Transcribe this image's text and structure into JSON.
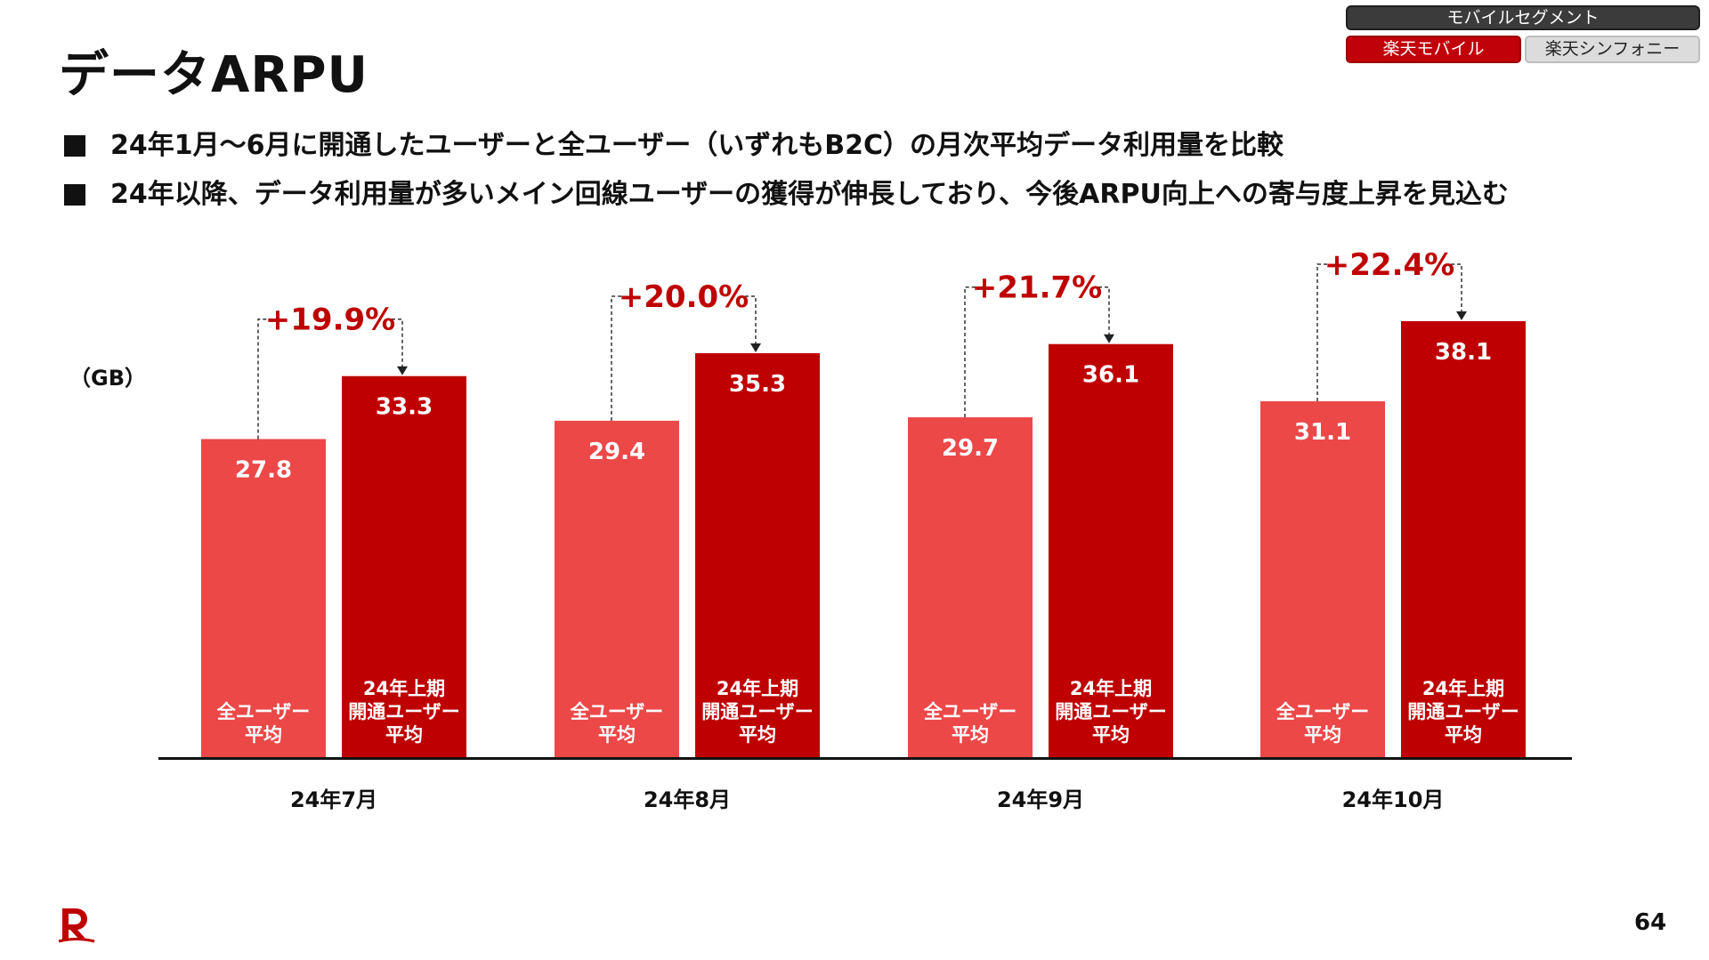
{
  "segment": {
    "header": "モバイルセグメント",
    "tabs": [
      {
        "label": "楽天モバイル",
        "active": true
      },
      {
        "label": "楽天シンフォニー",
        "active": false
      }
    ]
  },
  "title": "データARPU",
  "bullets": [
    "24年1月～6月に開通したユーザーと全ユーザー（いずれもB2C）の月次平均データ利用量を比較",
    "24年以降、データ利用量が多いメイン回線ユーザーの獲得が伸長しており、今後ARPU向上への寄与度上昇を見込む"
  ],
  "page_number": "64",
  "colors": {
    "brand_red": "#bf0000",
    "light_red": "#ec4848",
    "dark_red": "#bf0000",
    "accent_text_red": "#bf0000"
  },
  "chart_data": {
    "type": "bar",
    "ylabel": "（GB）",
    "categories": [
      "24年7月",
      "24年8月",
      "24年9月",
      "24年10月"
    ],
    "series": [
      {
        "name": "全ユーザー平均",
        "label_lines": [
          "全ユーザー",
          "平均"
        ],
        "color": "#ec4848",
        "values": [
          27.8,
          29.4,
          29.7,
          31.1
        ]
      },
      {
        "name": "24年上期開通ユーザー平均",
        "label_lines": [
          "24年上期",
          "開通ユーザー",
          "平均"
        ],
        "color": "#bf0000",
        "values": [
          33.3,
          35.3,
          36.1,
          38.1
        ]
      }
    ],
    "data_labels": [
      [
        "27.8",
        "29.4",
        "29.7",
        "31.1"
      ],
      [
        "33.3",
        "35.3",
        "36.1",
        "38.1"
      ]
    ],
    "increase_labels": [
      "+19.9%",
      "+20.0%",
      "+21.7%",
      "+22.4%"
    ],
    "ylim": [
      0,
      38.1
    ],
    "grid": false,
    "legend": "none"
  }
}
